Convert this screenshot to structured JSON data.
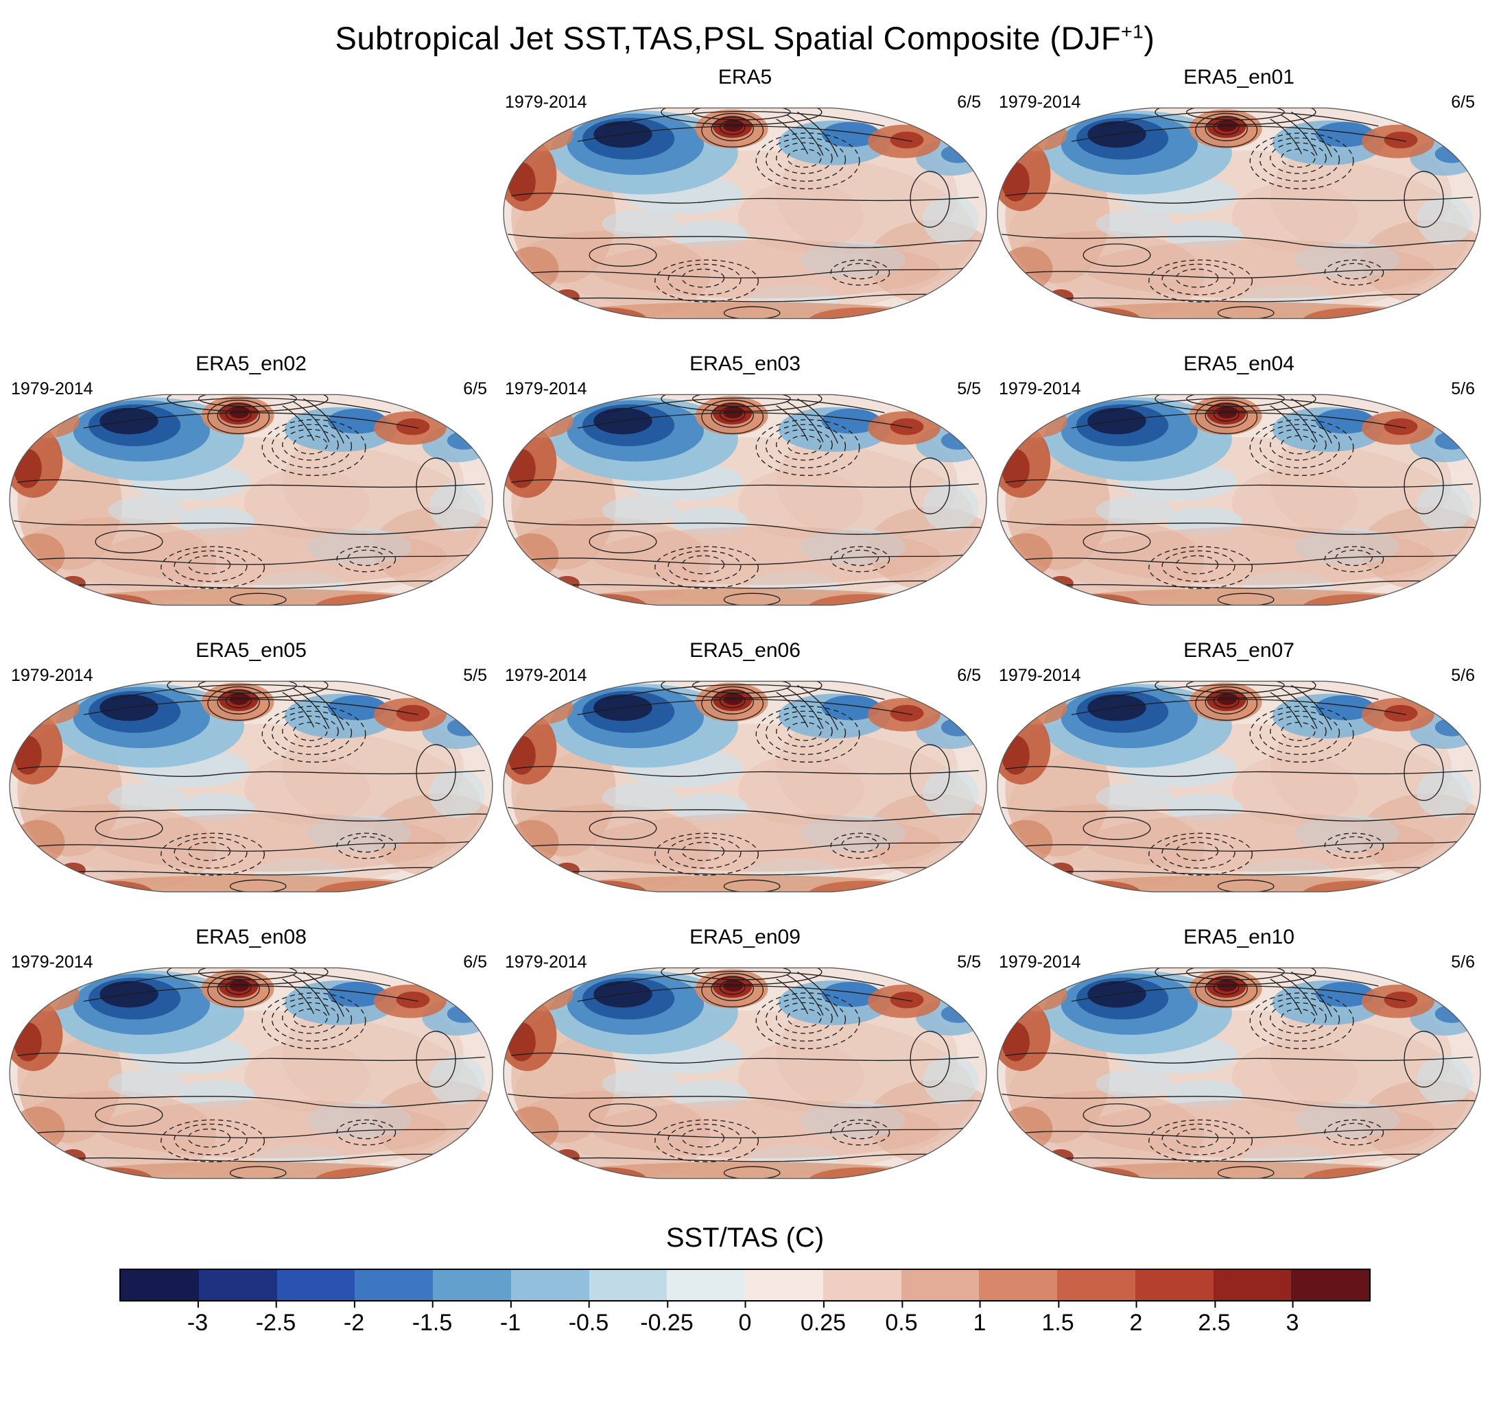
{
  "figure": {
    "title_prefix": "Subtropical Jet SST,TAS,PSL Spatial Composite (DJF",
    "title_sup": "+1",
    "title_suffix": ")"
  },
  "chart_data": {
    "type": "heatmap",
    "title": "Subtropical Jet SST,TAS,PSL Spatial Composite (DJF+1)",
    "layout": "grid of 11 global anomaly map panels (3 columns, first cell of row 1 empty) with shared diverging colorbar at bottom; shaded SST/TAS anomalies with PSL contour overlays (solid positive, dashed negative)",
    "panels": [
      {
        "name": "ERA5",
        "period": "1979-2014",
        "count": "6/5"
      },
      {
        "name": "ERA5_en01",
        "period": "1979-2014",
        "count": "6/5"
      },
      {
        "name": "ERA5_en02",
        "period": "1979-2014",
        "count": "6/5"
      },
      {
        "name": "ERA5_en03",
        "period": "1979-2014",
        "count": "5/5"
      },
      {
        "name": "ERA5_en04",
        "period": "1979-2014",
        "count": "5/6"
      },
      {
        "name": "ERA5_en05",
        "period": "1979-2014",
        "count": "5/5"
      },
      {
        "name": "ERA5_en06",
        "period": "1979-2014",
        "count": "6/5"
      },
      {
        "name": "ERA5_en07",
        "period": "1979-2014",
        "count": "5/6"
      },
      {
        "name": "ERA5_en08",
        "period": "1979-2014",
        "count": "6/5"
      },
      {
        "name": "ERA5_en09",
        "period": "1979-2014",
        "count": "5/5"
      },
      {
        "name": "ERA5_en10",
        "period": "1979-2014",
        "count": "5/6"
      }
    ],
    "colorbar": {
      "label": "SST/TAS (C)",
      "ticks": [
        "-3",
        "-2.5",
        "-2",
        "-1.5",
        "-1",
        "-0.5",
        "-0.25",
        "0",
        "0.25",
        "0.5",
        "1",
        "1.5",
        "2",
        "2.5",
        "3"
      ],
      "colors": [
        "#151b4e",
        "#1f3181",
        "#2a52b0",
        "#3d77c2",
        "#63a0cd",
        "#92c0dc",
        "#c0dbe7",
        "#e3edf0",
        "#f6e8e2",
        "#efcfc2",
        "#e3ac97",
        "#d8876b",
        "#c96247",
        "#b5402d",
        "#93251e",
        "#641418"
      ],
      "value_range": [
        -3,
        3
      ]
    }
  }
}
